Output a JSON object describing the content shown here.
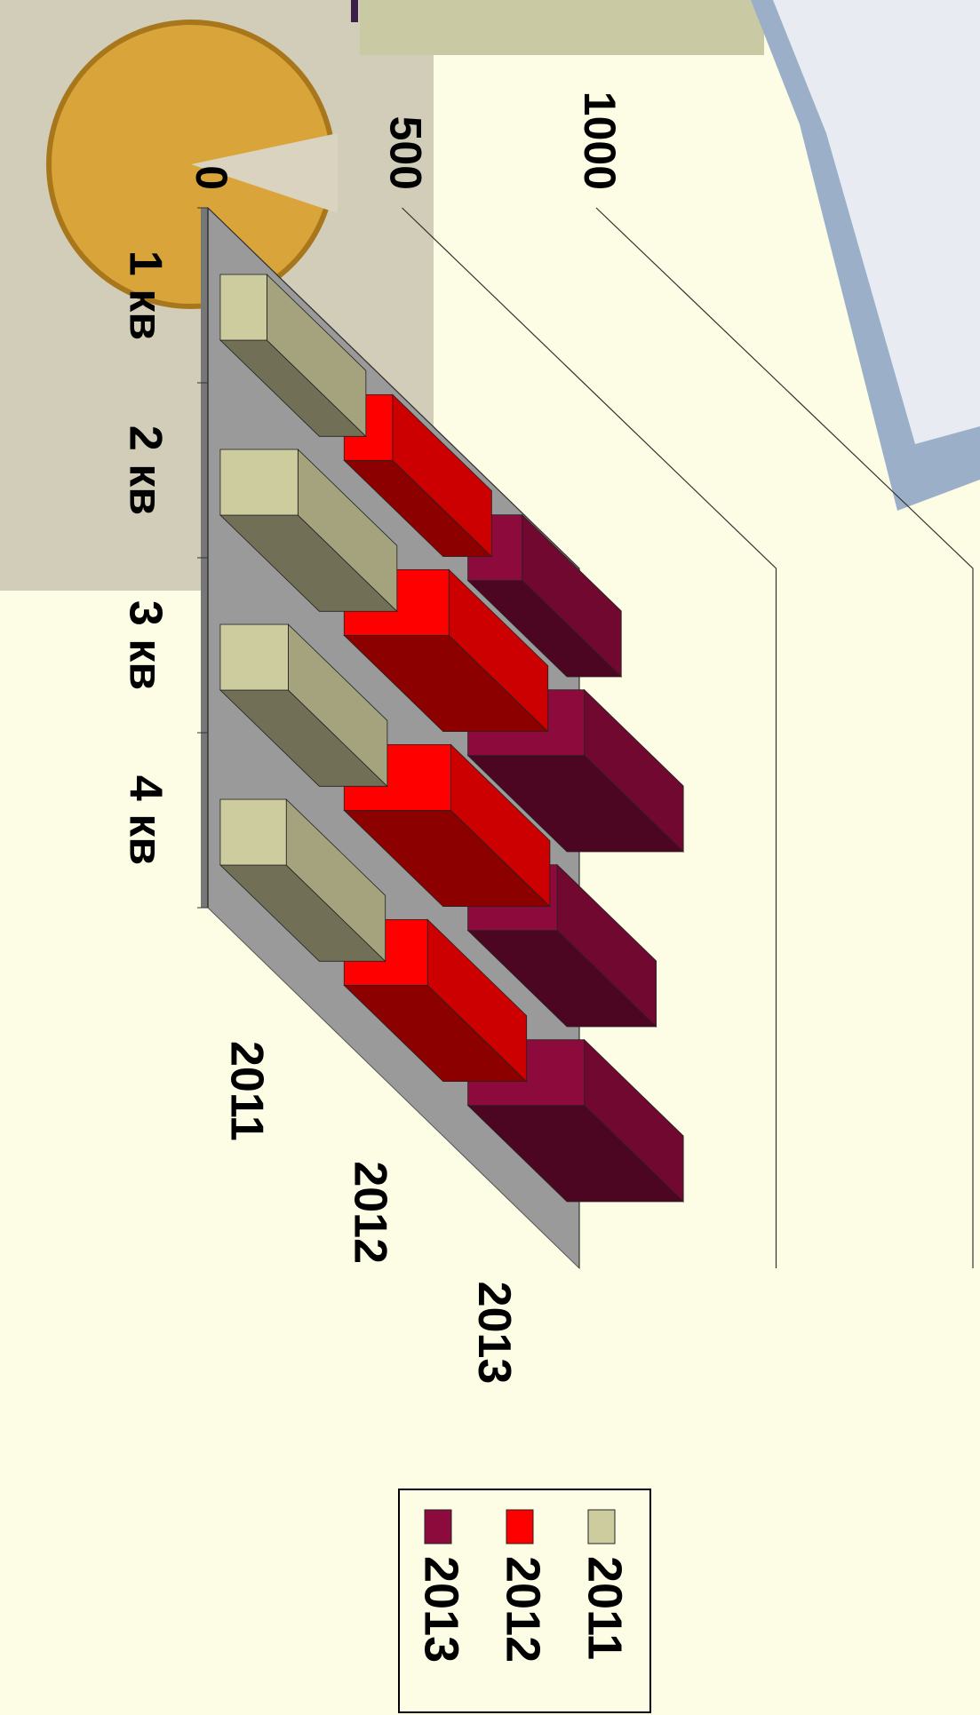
{
  "chart_data": {
    "type": "bar3d",
    "categories": [
      "1 кв",
      "2 кв",
      "3 кв",
      "4 кв"
    ],
    "series": [
      {
        "name": "2011",
        "color": "#cdcc9e",
        "values": [
          120,
          200,
          175,
          170
        ]
      },
      {
        "name": "2012",
        "color": "#ff0000",
        "values": [
          125,
          270,
          275,
          215
        ]
      },
      {
        "name": "2013",
        "color": "#8c0a3c",
        "values": [
          140,
          300,
          230,
          300
        ]
      }
    ],
    "xlim": [
      0,
      1000
    ],
    "xticks": [
      0,
      500,
      1000
    ],
    "grid": true,
    "legend": "bottom"
  }
}
